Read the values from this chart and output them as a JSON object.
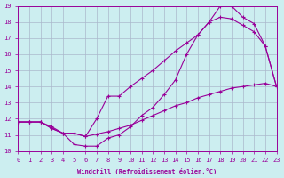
{
  "xlabel": "Windchill (Refroidissement éolien,°C)",
  "xlim": [
    0,
    23
  ],
  "ylim": [
    10,
    19
  ],
  "xticks": [
    0,
    1,
    2,
    3,
    4,
    5,
    6,
    7,
    8,
    9,
    10,
    11,
    12,
    13,
    14,
    15,
    16,
    17,
    18,
    19,
    20,
    21,
    22,
    23
  ],
  "yticks": [
    10,
    11,
    12,
    13,
    14,
    15,
    16,
    17,
    18,
    19
  ],
  "bg_color": "#cceef0",
  "grid_color": "#aab8cc",
  "line_color": "#990099",
  "curve1_x": [
    0,
    1,
    2,
    3,
    4,
    5,
    6,
    7,
    8,
    9,
    10,
    11,
    12,
    13,
    14,
    15,
    16,
    17,
    18,
    19,
    20,
    21,
    22,
    23
  ],
  "curve1_y": [
    11.8,
    11.8,
    11.8,
    11.5,
    11.1,
    11.1,
    10.9,
    11.05,
    11.2,
    11.4,
    11.6,
    11.9,
    12.2,
    12.5,
    12.8,
    13.0,
    13.3,
    13.5,
    13.7,
    13.9,
    14.0,
    14.1,
    14.2,
    14.0
  ],
  "curve2_x": [
    0,
    1,
    2,
    3,
    4,
    5,
    6,
    7,
    8,
    9,
    10,
    11,
    12,
    13,
    14,
    15,
    16,
    17,
    18,
    19,
    20,
    21,
    22,
    23
  ],
  "curve2_y": [
    11.8,
    11.8,
    11.8,
    11.4,
    11.1,
    10.4,
    10.3,
    10.3,
    10.8,
    11.0,
    11.5,
    12.2,
    12.7,
    13.5,
    14.4,
    16.0,
    17.2,
    18.0,
    19.0,
    19.0,
    18.3,
    17.9,
    16.5,
    14.0
  ],
  "curve3_x": [
    0,
    1,
    2,
    3,
    4,
    5,
    6,
    7,
    8,
    9,
    10,
    11,
    12,
    13,
    14,
    15,
    16,
    17,
    18,
    19,
    20,
    21,
    22,
    23
  ],
  "curve3_y": [
    11.8,
    11.8,
    11.8,
    11.4,
    11.1,
    11.1,
    10.9,
    12.0,
    13.4,
    13.4,
    14.0,
    14.5,
    15.0,
    15.6,
    16.2,
    16.7,
    17.2,
    18.0,
    18.3,
    18.2,
    17.8,
    17.4,
    16.5,
    14.0
  ],
  "marker": "+",
  "markersize": 3,
  "linewidth": 0.8
}
